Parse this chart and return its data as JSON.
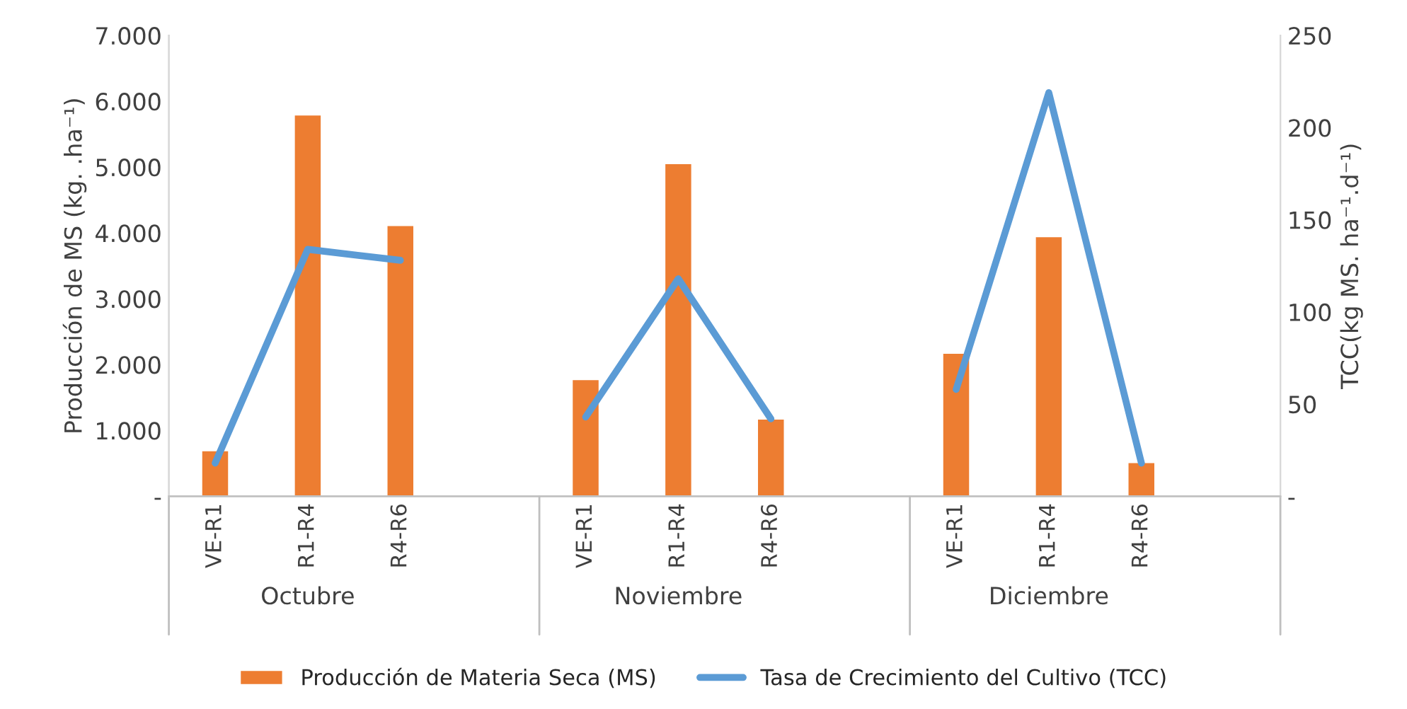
{
  "chart_data": {
    "type": "bar",
    "categories": [
      "VE-R1",
      "R1-R4",
      "R4-R6",
      null,
      "VE-R1",
      "R1-R4",
      "R4-R6",
      null,
      "VE-R1",
      "R1-R4",
      "R4-R6",
      null
    ],
    "series": [
      {
        "name": "Producción de Materia Seca (MS)",
        "color": "#ed7d31",
        "values": [
          700,
          5800,
          4120,
          null,
          1780,
          5060,
          1180,
          null,
          2180,
          3950,
          520,
          null
        ]
      },
      {
        "name": "Tasa de Crecimiento del Cultivo (TCC)",
        "type": "line",
        "axis": "y2",
        "color": "#5b9bd5",
        "values": [
          18,
          134,
          128,
          null,
          43,
          118,
          42,
          null,
          58,
          219,
          18,
          null
        ]
      }
    ],
    "ylabel": "Producción de MS (kg. .ha⁻¹)",
    "y2label": "TCC(kg MS. ha⁻¹.d⁻¹)",
    "ylim": [
      0,
      7000
    ],
    "yticks": [
      {
        "value": 0,
        "label": "-"
      },
      {
        "value": 1000,
        "label": "1.000"
      },
      {
        "value": 2000,
        "label": "2.000"
      },
      {
        "value": 3000,
        "label": "3.000"
      },
      {
        "value": 4000,
        "label": "4.000"
      },
      {
        "value": 5000,
        "label": "5.000"
      },
      {
        "value": 6000,
        "label": "6.000"
      },
      {
        "value": 7000,
        "label": "7.000"
      }
    ],
    "y2lim": [
      0,
      250
    ],
    "y2ticks": [
      {
        "value": 0,
        "label": "-"
      },
      50,
      100,
      150,
      200,
      250
    ],
    "annotations": [
      "Octubre",
      "Noviembre",
      "Diciembre"
    ],
    "legend": "bottom",
    "grid": false
  }
}
